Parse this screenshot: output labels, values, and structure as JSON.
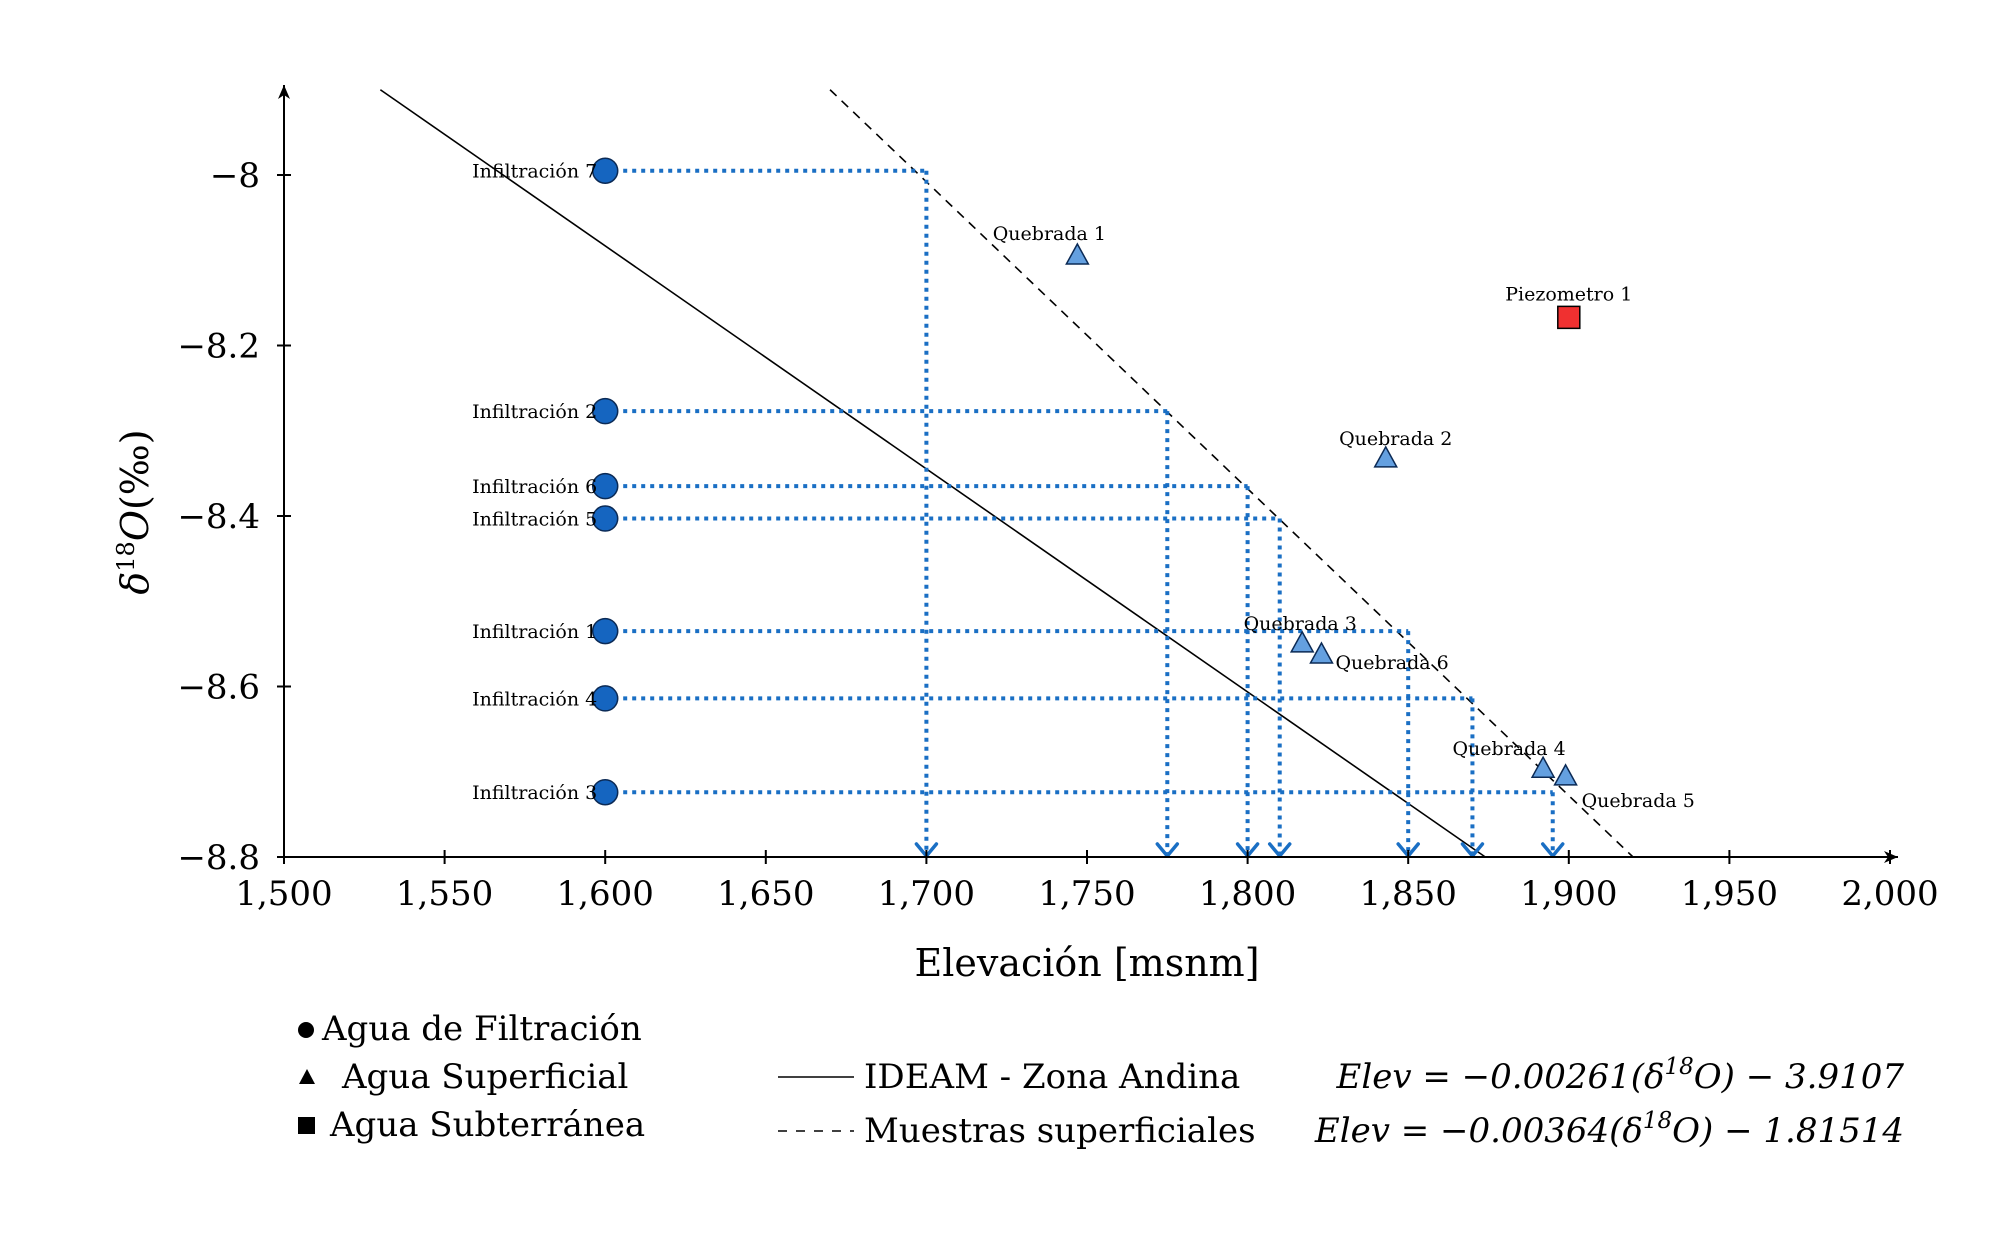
{
  "chart_data": {
    "type": "scatter",
    "xlabel": "Elevación [msnm]",
    "ylabel": "δ18O(‰)",
    "xlim": [
      1500,
      2000
    ],
    "ylim": [
      -8.8,
      -7.9
    ],
    "x_ticks": [
      1500,
      1550,
      1600,
      1650,
      1700,
      1750,
      1800,
      1850,
      1900,
      1950,
      2000
    ],
    "x_tick_labels": [
      "1,500",
      "1,550",
      "1,600",
      "1,650",
      "1,700",
      "1,750",
      "1,800",
      "1,850",
      "1,900",
      "1,950",
      "2,000"
    ],
    "y_ticks": [
      -8.8,
      -8.6,
      -8.4,
      -8.2,
      -8
    ],
    "y_tick_labels": [
      "−8.8",
      "−8.6",
      "−8.4",
      "−8.2",
      "−8"
    ],
    "colors": {
      "infiltracion": "#1565c0",
      "quebrada": "#64a0e0",
      "piezometro": "#f03030",
      "guide": "#1a6fc4"
    },
    "series": [
      {
        "name": "Agua de Filtración",
        "marker": "circle",
        "points": [
          {
            "label": "Infiltración 7",
            "x": 1600,
            "y": -7.995,
            "target_x": 1700
          },
          {
            "label": "Infiltración 2",
            "x": 1600,
            "y": -8.277,
            "target_x": 1775
          },
          {
            "label": "Infiltración 6",
            "x": 1600,
            "y": -8.365,
            "target_x": 1800
          },
          {
            "label": "Infiltración 5",
            "x": 1600,
            "y": -8.403,
            "target_x": 1810
          },
          {
            "label": "Infiltración 1",
            "x": 1600,
            "y": -8.535,
            "target_x": 1850
          },
          {
            "label": "Infiltración 4",
            "x": 1600,
            "y": -8.614,
            "target_x": 1870
          },
          {
            "label": "Infiltración 3",
            "x": 1600,
            "y": -8.724,
            "target_x": 1895
          }
        ]
      },
      {
        "name": "Agua Superficial",
        "marker": "triangle",
        "points": [
          {
            "label": "Quebrada 1",
            "x": 1747,
            "y": -8.095
          },
          {
            "label": "Quebrada 2",
            "x": 1843,
            "y": -8.333
          },
          {
            "label": "Quebrada 3",
            "x": 1817,
            "y": -8.55
          },
          {
            "label": "Quebrada 6",
            "x": 1823,
            "y": -8.563
          },
          {
            "label": "Quebrada 4",
            "x": 1892,
            "y": -8.697
          },
          {
            "label": "Quebrada 5",
            "x": 1899,
            "y": -8.706
          }
        ]
      },
      {
        "name": "Agua Subterránea",
        "marker": "square",
        "points": [
          {
            "label": "Piezometro 1",
            "x": 1900,
            "y": -8.167
          }
        ]
      }
    ],
    "lines": [
      {
        "name": "IDEAM - Zona Andina",
        "style": "solid",
        "equation": "Elev = −0.00261(δ18O) − 3.9107",
        "x": [
          1530,
          1874
        ],
        "y": [
          -7.9,
          -8.8
        ]
      },
      {
        "name": "Muestras superficiales",
        "style": "dashed",
        "equation": "Elev = −0.00364(δ18O) − 1.81514",
        "x": [
          1670,
          1920
        ],
        "y": [
          -7.9,
          -8.8
        ]
      }
    ]
  }
}
